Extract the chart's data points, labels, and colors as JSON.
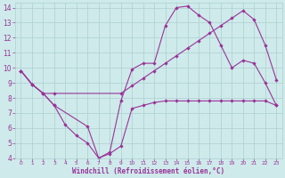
{
  "xlabel": "Windchill (Refroidissement éolien,°C)",
  "background_color": "#ceeaea",
  "grid_color": "#aed0d0",
  "line_color": "#993399",
  "xlim": [
    -0.5,
    23.5
  ],
  "ylim": [
    4,
    14.3
  ],
  "yticks": [
    4,
    5,
    6,
    7,
    8,
    9,
    10,
    11,
    12,
    13,
    14
  ],
  "xticks": [
    0,
    1,
    2,
    3,
    4,
    5,
    6,
    7,
    8,
    9,
    10,
    11,
    12,
    13,
    14,
    15,
    16,
    17,
    18,
    19,
    20,
    21,
    22,
    23
  ],
  "line1_x": [
    0,
    1,
    2,
    3,
    9,
    10,
    11,
    12,
    13,
    14,
    15,
    16,
    17,
    18,
    19,
    20,
    21,
    22,
    23
  ],
  "line1_y": [
    9.8,
    8.9,
    8.3,
    8.3,
    8.3,
    8.8,
    9.3,
    9.8,
    10.3,
    10.8,
    11.3,
    11.8,
    12.3,
    12.8,
    13.3,
    13.8,
    13.2,
    11.5,
    9.2
  ],
  "line2_x": [
    0,
    1,
    2,
    3,
    6,
    7,
    8,
    9,
    10,
    11,
    12,
    13,
    14,
    15,
    16,
    17,
    18,
    19,
    20,
    21,
    22,
    23
  ],
  "line2_y": [
    9.8,
    8.9,
    8.3,
    7.5,
    6.1,
    4.0,
    4.4,
    7.8,
    9.9,
    10.3,
    10.3,
    12.8,
    14.0,
    14.1,
    13.5,
    13.0,
    11.5,
    10.0,
    10.5,
    10.3,
    9.0,
    7.5
  ],
  "line3_x": [
    0,
    1,
    2,
    3,
    4,
    5,
    6,
    7,
    8,
    9,
    10,
    11,
    12,
    13,
    14,
    15,
    16,
    17,
    18,
    19,
    20,
    21,
    22,
    23
  ],
  "line3_y": [
    9.8,
    8.9,
    8.3,
    7.5,
    6.2,
    5.5,
    5.0,
    4.0,
    4.3,
    4.8,
    7.3,
    7.5,
    7.7,
    7.8,
    7.8,
    7.8,
    7.8,
    7.8,
    7.8,
    7.8,
    7.8,
    7.8,
    7.8,
    7.5
  ]
}
